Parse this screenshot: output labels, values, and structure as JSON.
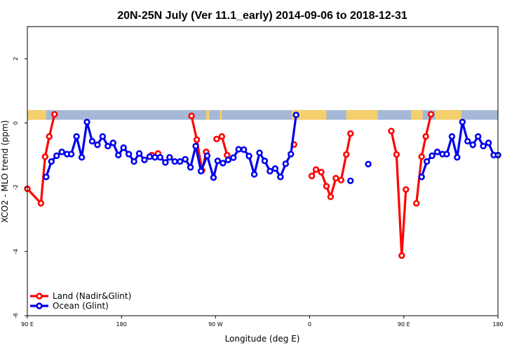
{
  "chart_data": {
    "type": "line",
    "title": "20N-25N July (Ver 11.1_early)   2014-09-06 to 2018-12-31",
    "xlabel": "Longitude (deg E)",
    "ylabel": "XCO2 - MLO trend (ppm)",
    "x_ticks": [
      {
        "value": 90,
        "label": "90 E"
      },
      {
        "value": 180,
        "label": "180"
      },
      {
        "value": 270,
        "label": "90 W"
      },
      {
        "value": 360,
        "label": "0"
      },
      {
        "value": 450,
        "label": "90 E"
      },
      {
        "value": 540,
        "label": "180"
      }
    ],
    "y_ticks": [
      {
        "value": -6,
        "label": "-6"
      },
      {
        "value": -4,
        "label": "-4"
      },
      {
        "value": -2,
        "label": "-2"
      },
      {
        "value": 0,
        "label": "0"
      },
      {
        "value": 2,
        "label": "2"
      }
    ],
    "xlim": [
      90,
      540
    ],
    "ylim": [
      -6,
      3
    ],
    "grid": false,
    "legend_position": "bottom-left",
    "land_ocean_strip": {
      "y_range": [
        0.1,
        0.4
      ],
      "ocean_color": "#a5b8d8",
      "land_color": "#f5cf6c",
      "land_intervals": [
        [
          90,
          108
        ],
        [
          261,
          264
        ],
        [
          274,
          276
        ],
        [
          343,
          376
        ],
        [
          395,
          425
        ],
        [
          457,
          468
        ],
        [
          480,
          505
        ]
      ]
    },
    "series": [
      {
        "name": "Land (Nadir&Glint)",
        "color": "#ff0000",
        "segments": [
          [
            [
              90,
              -2.05
            ],
            [
              103,
              -2.5
            ],
            [
              107,
              -1.05
            ],
            [
              111,
              -0.42
            ],
            [
              116,
              0.27
            ]
          ],
          [
            [
              209,
              -1.0
            ],
            [
              215,
              -0.95
            ]
          ],
          [
            [
              247,
              0.22
            ],
            [
              252,
              -0.52
            ],
            [
              257,
              -1.48
            ],
            [
              261,
              -0.9
            ]
          ],
          [
            [
              271,
              -0.5
            ],
            [
              276,
              -0.42
            ],
            [
              281,
              -1.0
            ]
          ],
          [
            [
              345,
              -0.67
            ]
          ],
          [
            [
              362,
              -1.65
            ],
            [
              366,
              -1.45
            ],
            [
              371,
              -1.53
            ],
            [
              376,
              -1.97
            ],
            [
              380,
              -2.3
            ],
            [
              385,
              -1.72
            ],
            [
              390,
              -1.78
            ],
            [
              395,
              -0.98
            ],
            [
              399,
              -0.33
            ]
          ],
          [
            [
              438,
              -0.25
            ],
            [
              443,
              -0.98
            ],
            [
              448,
              -4.13
            ],
            [
              452,
              -2.07
            ]
          ],
          [
            [
              462,
              -2.5
            ],
            [
              467,
              -1.05
            ],
            [
              471,
              -0.42
            ],
            [
              476,
              0.27
            ]
          ]
        ]
      },
      {
        "name": "Ocean (Glint)",
        "color": "#0000ee",
        "segments": [
          [
            [
              108,
              -1.68
            ],
            [
              113,
              -1.2
            ],
            [
              118,
              -1.02
            ],
            [
              123,
              -0.9
            ],
            [
              128,
              -0.97
            ],
            [
              132,
              -0.97
            ],
            [
              137,
              -0.42
            ],
            [
              142,
              -1.07
            ],
            [
              147,
              0.03
            ],
            [
              152,
              -0.57
            ],
            [
              157,
              -0.68
            ],
            [
              162,
              -0.42
            ],
            [
              167,
              -0.72
            ],
            [
              172,
              -0.62
            ],
            [
              177,
              -1.0
            ],
            [
              182,
              -0.77
            ],
            [
              187,
              -0.97
            ],
            [
              192,
              -1.2
            ],
            [
              197,
              -0.95
            ],
            [
              202,
              -1.15
            ],
            [
              207,
              -1.05
            ],
            [
              212,
              -1.07
            ],
            [
              217,
              -1.07
            ],
            [
              222,
              -1.23
            ],
            [
              226,
              -1.07
            ],
            [
              231,
              -1.2
            ],
            [
              236,
              -1.2
            ],
            [
              241,
              -1.13
            ],
            [
              246,
              -1.38
            ],
            [
              251,
              -0.72
            ],
            [
              256,
              -1.5
            ],
            [
              262,
              -1.02
            ],
            [
              268,
              -1.7
            ],
            [
              272,
              -1.18
            ],
            [
              277,
              -1.25
            ],
            [
              282,
              -1.15
            ],
            [
              287,
              -1.08
            ],
            [
              292,
              -0.82
            ],
            [
              297,
              -0.83
            ],
            [
              302,
              -1.03
            ],
            [
              307,
              -1.6
            ],
            [
              312,
              -0.93
            ],
            [
              317,
              -1.18
            ],
            [
              322,
              -1.5
            ],
            [
              327,
              -1.42
            ],
            [
              332,
              -1.68
            ],
            [
              337,
              -1.27
            ],
            [
              342,
              -0.97
            ],
            [
              347,
              0.25
            ]
          ],
          [
            [
              399,
              -1.8
            ]
          ],
          [
            [
              416,
              -1.28
            ]
          ],
          [
            [
              467,
              -1.68
            ],
            [
              472,
              -1.2
            ],
            [
              477,
              -1.02
            ],
            [
              482,
              -0.9
            ],
            [
              487,
              -0.97
            ],
            [
              491,
              -0.97
            ],
            [
              496,
              -0.42
            ],
            [
              501,
              -1.07
            ],
            [
              506,
              0.03
            ],
            [
              511,
              -0.57
            ],
            [
              516,
              -0.68
            ],
            [
              521,
              -0.42
            ],
            [
              526,
              -0.72
            ],
            [
              531,
              -0.62
            ],
            [
              536,
              -1.0
            ],
            [
              540,
              -1.0
            ]
          ]
        ]
      }
    ]
  }
}
